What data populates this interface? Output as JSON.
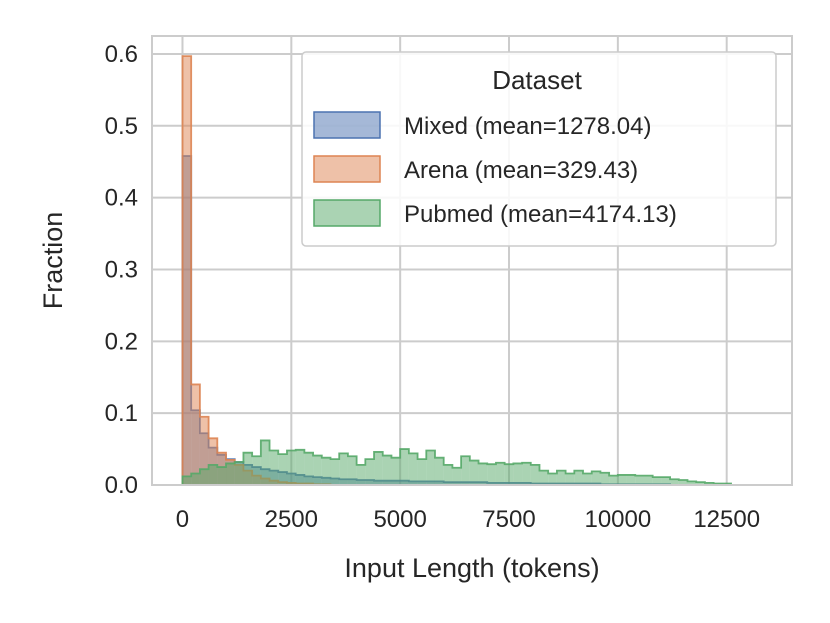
{
  "chart_data": {
    "type": "histogram",
    "xlabel": "Input Length (tokens)",
    "ylabel": "Fraction",
    "xlim": [
      -700,
      14000
    ],
    "ylim": [
      0,
      0.625
    ],
    "xticks": [
      0,
      2500,
      5000,
      7500,
      10000,
      12500
    ],
    "xtick_labels": [
      "0",
      "2500",
      "5000",
      "7500",
      "10000",
      "12500"
    ],
    "yticks": [
      0.0,
      0.1,
      0.2,
      0.3,
      0.4,
      0.5,
      0.6
    ],
    "ytick_labels": [
      "0.0",
      "0.1",
      "0.2",
      "0.3",
      "0.4",
      "0.5",
      "0.6"
    ],
    "grid": true,
    "legend": {
      "title": "Dataset",
      "position": "top-right"
    },
    "bin_width": 200,
    "series": [
      {
        "name": "Mixed (mean=1278.04)",
        "color": "#4c72b0",
        "start": 0,
        "values": [
          0.458,
          0.104,
          0.072,
          0.052,
          0.042,
          0.036,
          0.032,
          0.028,
          0.025,
          0.022,
          0.02,
          0.018,
          0.016,
          0.014,
          0.012,
          0.011,
          0.01,
          0.009,
          0.008,
          0.008,
          0.007,
          0.007,
          0.006,
          0.006,
          0.006,
          0.006,
          0.005,
          0.005,
          0.005,
          0.005,
          0.004,
          0.004,
          0.004,
          0.004,
          0.004,
          0.003,
          0.003,
          0.003,
          0.003,
          0.003,
          0.002,
          0.002,
          0.002,
          0.002,
          0.002,
          0.002,
          0.002,
          0.002,
          0.001,
          0.001,
          0.001,
          0.001,
          0.001,
          0.001,
          0.001,
          0.001
        ]
      },
      {
        "name": "Arena (mean=329.43)",
        "color": "#dd8452",
        "start": 0,
        "values": [
          0.597,
          0.14,
          0.095,
          0.065,
          0.045,
          0.035,
          0.028,
          0.02,
          0.013,
          0.009,
          0.006,
          0.004,
          0.003,
          0.002,
          0.002,
          0.001,
          0.001
        ]
      },
      {
        "name": "Pubmed (mean=4174.13)",
        "color": "#55a868",
        "start": 0,
        "values": [
          0.012,
          0.016,
          0.022,
          0.028,
          0.025,
          0.03,
          0.032,
          0.045,
          0.04,
          0.062,
          0.048,
          0.043,
          0.048,
          0.049,
          0.045,
          0.041,
          0.038,
          0.036,
          0.044,
          0.04,
          0.028,
          0.036,
          0.046,
          0.041,
          0.038,
          0.05,
          0.044,
          0.036,
          0.048,
          0.038,
          0.028,
          0.024,
          0.04,
          0.034,
          0.03,
          0.029,
          0.031,
          0.029,
          0.03,
          0.031,
          0.028,
          0.02,
          0.016,
          0.02,
          0.016,
          0.02,
          0.016,
          0.019,
          0.017,
          0.013,
          0.014,
          0.014,
          0.013,
          0.013,
          0.011,
          0.011,
          0.008,
          0.007,
          0.005,
          0.004,
          0.003,
          0.002,
          0.002
        ]
      }
    ]
  }
}
